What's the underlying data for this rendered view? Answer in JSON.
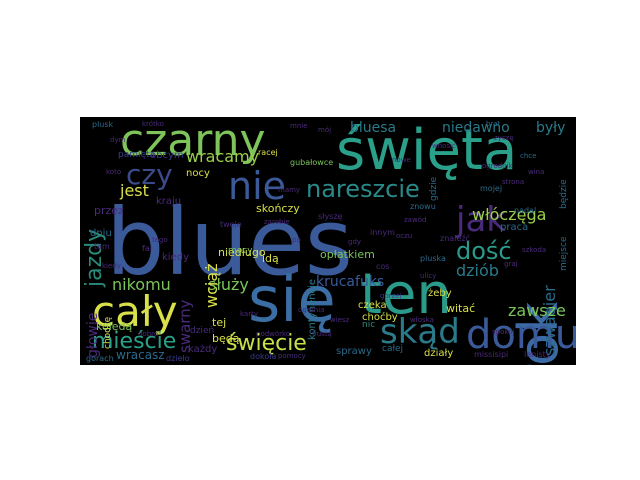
{
  "words": [
    {
      "text": "blues",
      "color": "#3b5a9a",
      "vertical": false,
      "weight": "big"
    },
    {
      "text": "się",
      "color": "#3b6ea5",
      "vertical": false
    },
    {
      "text": "ten",
      "color": "#2a9a8a",
      "vertical": false
    },
    {
      "text": "święta",
      "color": "#2aa08a",
      "vertical": false
    },
    {
      "text": "czarny",
      "color": "#7ec45a",
      "vertical": false
    },
    {
      "text": "rok",
      "color": "#3b6aa5",
      "vertical": true
    },
    {
      "text": "cały",
      "color": "#d9e04a",
      "vertical": false
    },
    {
      "text": "domu",
      "color": "#3b5a9a",
      "vertical": false
    },
    {
      "text": "skąd",
      "color": "#2a7a8a",
      "vertical": false
    },
    {
      "text": "nie",
      "color": "#3b5a9a",
      "vertical": false
    },
    {
      "text": "jak",
      "color": "#4a2a7a",
      "vertical": false
    },
    {
      "text": "czy",
      "color": "#3b4a8a",
      "vertical": false
    },
    {
      "text": "nareszcie",
      "color": "#2a8a8a",
      "vertical": false
    },
    {
      "text": "dość",
      "color": "#2a9a8a",
      "vertical": false
    },
    {
      "text": "jazdy",
      "color": "#2a8a7a",
      "vertical": true
    },
    {
      "text": "mieście",
      "color": "#2aa08a",
      "vertical": false
    },
    {
      "text": "święcie",
      "color": "#c8e04a",
      "vertical": false
    },
    {
      "text": "bluesa",
      "color": "#2a7a8a",
      "vertical": false
    },
    {
      "text": "niedawno",
      "color": "#2a7a8a",
      "vertical": false
    },
    {
      "text": "były",
      "color": "#2a7a8a",
      "vertical": false
    },
    {
      "text": "włóczęga",
      "color": "#9ad04a",
      "vertical": false
    },
    {
      "text": "szwagier",
      "color": "#2a6a8a",
      "vertical": true
    },
    {
      "text": "dziób",
      "color": "#2a7a8a",
      "vertical": false
    },
    {
      "text": "zawsze",
      "color": "#7ac45a",
      "vertical": false
    },
    {
      "text": "wracamy",
      "color": "#9ad04a",
      "vertical": false
    },
    {
      "text": "jest",
      "color": "#d9e04a",
      "vertical": false
    },
    {
      "text": "nikomu",
      "color": "#7ac45a",
      "vertical": false
    },
    {
      "text": "służy",
      "color": "#7ac45a",
      "vertical": false
    },
    {
      "text": "krucafuks",
      "color": "#3b5a9a",
      "vertical": false
    },
    {
      "text": "wciąż",
      "color": "#d9e04a",
      "vertical": true
    },
    {
      "text": "swarny",
      "color": "#4a2a7a",
      "vertical": true
    },
    {
      "text": "głowie",
      "color": "#4a2a7a",
      "vertical": true
    },
    {
      "text": "kolędą",
      "color": "#7ac45a",
      "vertical": false
    },
    {
      "text": "tej",
      "color": "#d9e04a",
      "vertical": false
    },
    {
      "text": "będą",
      "color": "#d9e04a",
      "vertical": false
    },
    {
      "text": "czeka",
      "color": "#d9e04a",
      "vertical": false
    },
    {
      "text": "choćby",
      "color": "#d9e04a",
      "vertical": false
    },
    {
      "text": "witać",
      "color": "#d9e04a",
      "vertical": false
    },
    {
      "text": "żeby",
      "color": "#d9e04a",
      "vertical": false
    },
    {
      "text": "opłatkiem",
      "color": "#7ac45a",
      "vertical": false
    },
    {
      "text": "niedługo",
      "color": "#d9e04a",
      "vertical": false
    },
    {
      "text": "idą",
      "color": "#d9e04a",
      "vertical": false
    },
    {
      "text": "kontynencie",
      "color": "#2a7a8a",
      "vertical": true
    },
    {
      "text": "skończy",
      "color": "#d9e04a",
      "vertical": false
    },
    {
      "text": "nocy",
      "color": "#d9e04a",
      "vertical": false
    },
    {
      "text": "mocy",
      "color": "#7ac45a",
      "vertical": false
    },
    {
      "text": "wracasz",
      "color": "#2a6a8a",
      "vertical": false
    },
    {
      "text": "każdy",
      "color": "#4a2a7a",
      "vertical": false
    },
    {
      "text": "sprawy",
      "color": "#2a6a8a",
      "vertical": false
    },
    {
      "text": "działy",
      "color": "#d9e04a",
      "vertical": false
    },
    {
      "text": "całej",
      "color": "#2a6a8a",
      "vertical": false
    },
    {
      "text": "nic",
      "color": "#2a8a7a",
      "vertical": false
    },
    {
      "text": "przez",
      "color": "#4a2a7a",
      "vertical": false
    },
    {
      "text": "dniu",
      "color": "#2a6a8a",
      "vertical": false
    },
    {
      "text": "kraju",
      "color": "#4a2a7a",
      "vertical": false
    },
    {
      "text": "kiedy",
      "color": "#4a2a7a",
      "vertical": false
    },
    {
      "text": "dzień",
      "color": "#4a2a7a",
      "vertical": false
    },
    {
      "text": "pamięta",
      "color": "#3b3a8a",
      "vertical": false
    },
    {
      "text": "obcym",
      "color": "#3b3a8a",
      "vertical": false
    },
    {
      "text": "praca",
      "color": "#2a6a8a",
      "vertical": false
    },
    {
      "text": "miejsce",
      "color": "#2a6a8a",
      "vertical": true
    },
    {
      "text": "będzie",
      "color": "#2a6a8a",
      "vertical": true
    },
    {
      "text": "gdzie",
      "color": "#2a6a8a",
      "vertical": true
    },
    {
      "text": "pluska",
      "color": "#2a6a8a",
      "vertical": false
    },
    {
      "text": "znaleźć",
      "color": "#4a2a7a",
      "vertical": false
    },
    {
      "text": "innym",
      "color": "#4a2a7a",
      "vertical": false
    },
    {
      "text": "chodzę",
      "color": "#d9e04a",
      "vertical": true
    },
    {
      "text": "plusk",
      "color": "#2a6a8a",
      "vertical": false
    },
    {
      "text": "gorach",
      "color": "#2a6a8a",
      "vertical": false
    },
    {
      "text": "dzieło",
      "color": "#3b3a8a",
      "vertical": false
    },
    {
      "text": "dokoła",
      "color": "#3b3a8a",
      "vertical": false
    },
    {
      "text": "missisipi",
      "color": "#4a2a7a",
      "vertical": false
    },
    {
      "text": "lenisty",
      "color": "#4a2a7a",
      "vertical": false
    },
    {
      "text": "znowu",
      "color": "#2a6a8a",
      "vertical": false
    },
    {
      "text": "słyszę",
      "color": "#4a2a7a",
      "vertical": false
    },
    {
      "text": "twoje",
      "color": "#4a2a7a",
      "vertical": false
    },
    {
      "text": "gubałowce",
      "color": "#7ac45a",
      "vertical": false
    },
    {
      "text": "racej",
      "color": "#d9e04a",
      "vertical": false
    },
    {
      "text": "mojej",
      "color": "#2a6a8a",
      "vertical": false
    },
    {
      "text": "nadal",
      "color": "#2a6a8a",
      "vertical": false
    },
    {
      "text": "cos",
      "color": "#4a2a7a",
      "vertical": false
    },
    {
      "text": "brat",
      "color": "#2a6a8a",
      "vertical": false
    },
    {
      "text": "chce",
      "color": "#2a6a8a",
      "vertical": false
    },
    {
      "text": "fal",
      "color": "#4a2a7a",
      "vertical": false
    },
    {
      "text": "tam",
      "color": "#4a2a7a",
      "vertical": false
    },
    {
      "text": "dym",
      "color": "#4a2a7a",
      "vertical": false
    },
    {
      "text": "koto",
      "color": "#4a2a7a",
      "vertical": false
    },
    {
      "text": "gorzej",
      "color": "#3b3a8a",
      "vertical": false
    },
    {
      "text": "ogarnia",
      "color": "#4a2a7a",
      "vertical": false
    },
    {
      "text": "zarobie",
      "color": "#4a2a7a",
      "vertical": false
    },
    {
      "text": "pomocy",
      "color": "#4a2a7a",
      "vertical": false
    },
    {
      "text": "ulicy",
      "color": "#4a2a7a",
      "vertical": false
    },
    {
      "text": "wnosić",
      "color": "#4a2a7a",
      "vertical": false
    },
    {
      "text": "ogrodnik",
      "color": "#4a2a7a",
      "vertical": false
    },
    {
      "text": "strona",
      "color": "#4a2a7a",
      "vertical": false
    },
    {
      "text": "podwórko",
      "color": "#4a2a7a",
      "vertical": false
    },
    {
      "text": "kiedy",
      "color": "#4a2a7a",
      "vertical": false
    },
    {
      "text": "mnie",
      "color": "#4a2a7a",
      "vertical": false
    },
    {
      "text": "mój",
      "color": "#4a2a7a",
      "vertical": false
    },
    {
      "text": "krótko",
      "color": "#4a2a7a",
      "vertical": false
    },
    {
      "text": "wina",
      "color": "#4a2a7a",
      "vertical": false
    },
    {
      "text": "zawód",
      "color": "#4a2a7a",
      "vertical": false
    },
    {
      "text": "tego",
      "color": "#4a2a7a",
      "vertical": false
    },
    {
      "text": "mamy",
      "color": "#4a2a7a",
      "vertical": false
    },
    {
      "text": "włoska",
      "color": "#4a2a7a",
      "vertical": false
    },
    {
      "text": "graj",
      "color": "#4a2a7a",
      "vertical": false
    },
    {
      "text": "tłustą",
      "color": "#4a2a7a",
      "vertical": false
    },
    {
      "text": "zyczę",
      "color": "#4a2a7a",
      "vertical": false
    },
    {
      "text": "oczu",
      "color": "#4a2a7a",
      "vertical": false
    },
    {
      "text": "po",
      "color": "#4a2a7a",
      "vertical": false
    },
    {
      "text": "wiesz",
      "color": "#4a2a7a",
      "vertical": false
    },
    {
      "text": "nowe",
      "color": "#4a2a7a",
      "vertical": false
    },
    {
      "text": "karty",
      "color": "#4a2a7a",
      "vertical": false
    },
    {
      "text": "spokoj",
      "color": "#4a2a7a",
      "vertical": false
    },
    {
      "text": "dobre",
      "color": "#4a2a7a",
      "vertical": false
    },
    {
      "text": "szkoda",
      "color": "#4a2a7a",
      "vertical": false
    },
    {
      "text": "gdy",
      "color": "#4a2a7a",
      "vertical": false
    }
  ]
}
